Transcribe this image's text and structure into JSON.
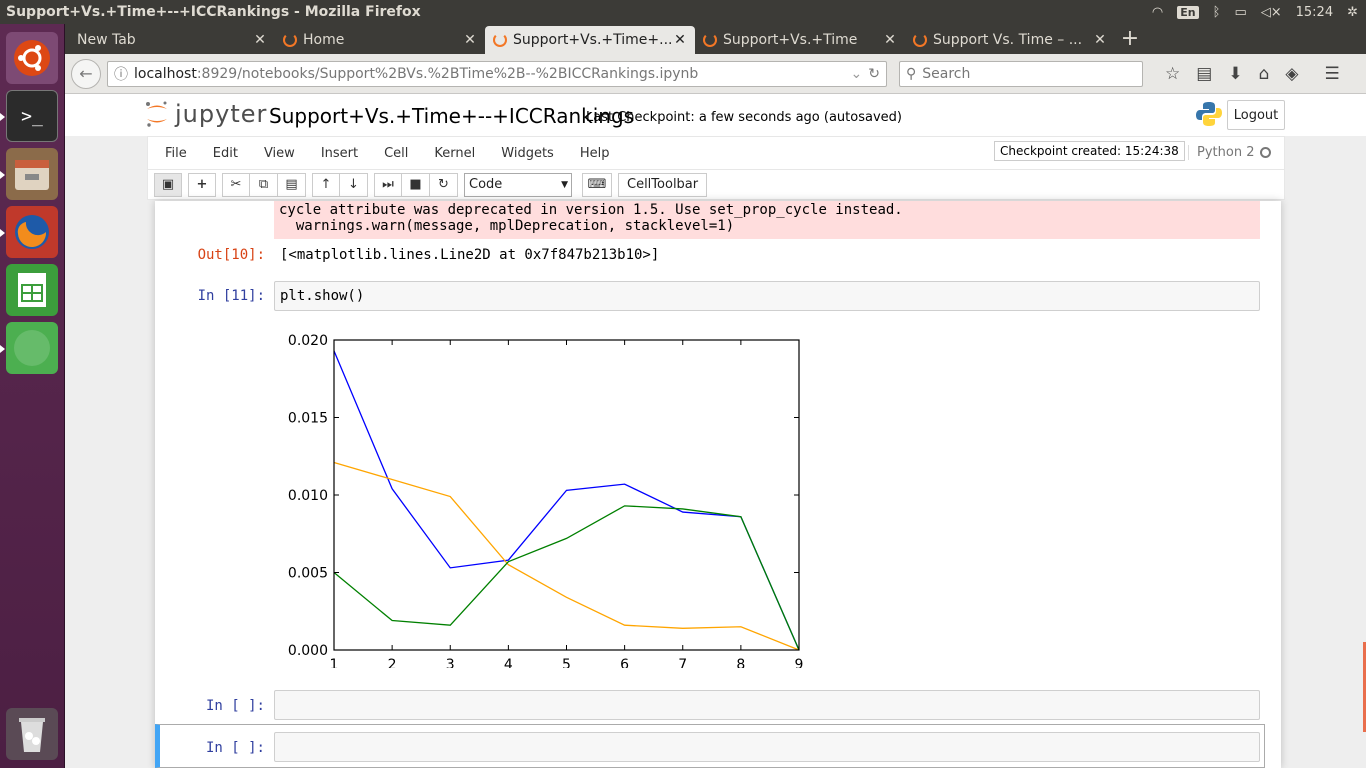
{
  "window": {
    "title": "Support+Vs.+Time+--+ICCRankings - Mozilla Firefox"
  },
  "panel": {
    "keyboard": "En",
    "clock": "15:24"
  },
  "tabs": [
    {
      "label": "New Tab"
    },
    {
      "label": "Home"
    },
    {
      "label": "Support+Vs.+Time+..."
    },
    {
      "label": "Support+Vs.+Time"
    },
    {
      "label": "Support Vs. Time – ..."
    }
  ],
  "nav": {
    "url_host": "localhost",
    "url_path": ":8929/notebooks/Support%2BVs.%2BTime%2B--%2BICCRankings.ipynb",
    "search_placeholder": "Search"
  },
  "jupyter": {
    "logo_text": "jupyter",
    "notebook_title": "Support+Vs.+Time+--+ICCRankings",
    "checkpoint_status": "Last Checkpoint: a few seconds ago (autosaved)",
    "logout_label": "Logout",
    "menu": [
      "File",
      "Edit",
      "View",
      "Insert",
      "Cell",
      "Kernel",
      "Widgets",
      "Help"
    ],
    "checkpoint_msg": "Checkpoint created: 15:24:38",
    "kernel_name": "Python 2",
    "cell_type": "Code",
    "celltoolbar_label": "CellToolbar"
  },
  "cells": {
    "stderr_line1": "cycle attribute was deprecated in version 1.5. Use set_prop_cycle instead.",
    "stderr_line2": "  warnings.warn(message, mplDeprecation, stacklevel=1)",
    "out10_prompt": "Out[10]:",
    "out10_text": "[<matplotlib.lines.Line2D at 0x7f847b213b10>]",
    "in11_prompt": "In [11]:",
    "in11_code": "plt.show()",
    "empty_prompt_1": "In [ ]:",
    "empty_prompt_2": "In [ ]:"
  },
  "colors": {
    "blue": "#0000ff",
    "green": "#008000",
    "orange": "#ffa500",
    "jupyter_orange": "#f37726"
  },
  "chart_data": {
    "type": "line",
    "x": [
      1,
      2,
      3,
      4,
      5,
      6,
      7,
      8,
      9
    ],
    "xticks": [
      "1",
      "2",
      "3",
      "4",
      "5",
      "6",
      "7",
      "8",
      "9"
    ],
    "yticks": [
      "0.000",
      "0.005",
      "0.010",
      "0.015",
      "0.020"
    ],
    "xlim": [
      1,
      9
    ],
    "ylim": [
      0,
      0.02
    ],
    "grid": false,
    "series": [
      {
        "color": "#0000ff",
        "values": [
          0.0193,
          0.0104,
          0.0053,
          0.0058,
          0.0103,
          0.0107,
          0.0089,
          0.0086,
          0.0
        ]
      },
      {
        "color": "#ffa500",
        "values": [
          0.0121,
          0.011,
          0.0099,
          0.0055,
          0.0034,
          0.0016,
          0.0014,
          0.0015,
          0.0
        ]
      },
      {
        "color": "#008000",
        "values": [
          0.005,
          0.0019,
          0.0016,
          0.0057,
          0.0072,
          0.0093,
          0.0091,
          0.0086,
          0.0
        ]
      }
    ]
  }
}
